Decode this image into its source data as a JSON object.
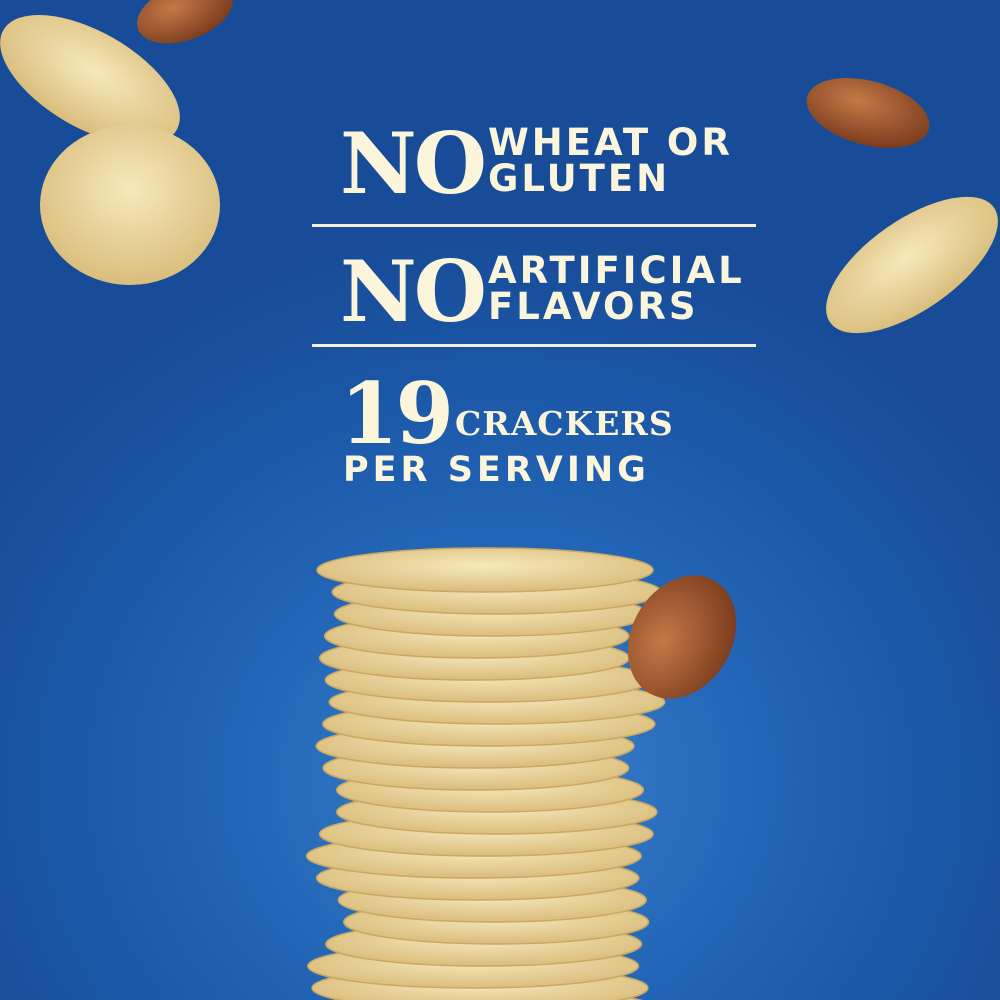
{
  "claims": [
    {
      "big": "NO",
      "line1": "WHEAT OR",
      "line2": "GLUTEN"
    },
    {
      "big": "NO",
      "line1": "ARTIFICIAL",
      "line2": "FLAVORS"
    }
  ],
  "serving": {
    "count": "19",
    "unit": "CRACKERS",
    "suffix": "PER SERVING"
  },
  "colors": {
    "background": "#1e5fae",
    "text": "#fbf5dc",
    "cracker": "#f0dca0",
    "almond": "#a45a32"
  }
}
